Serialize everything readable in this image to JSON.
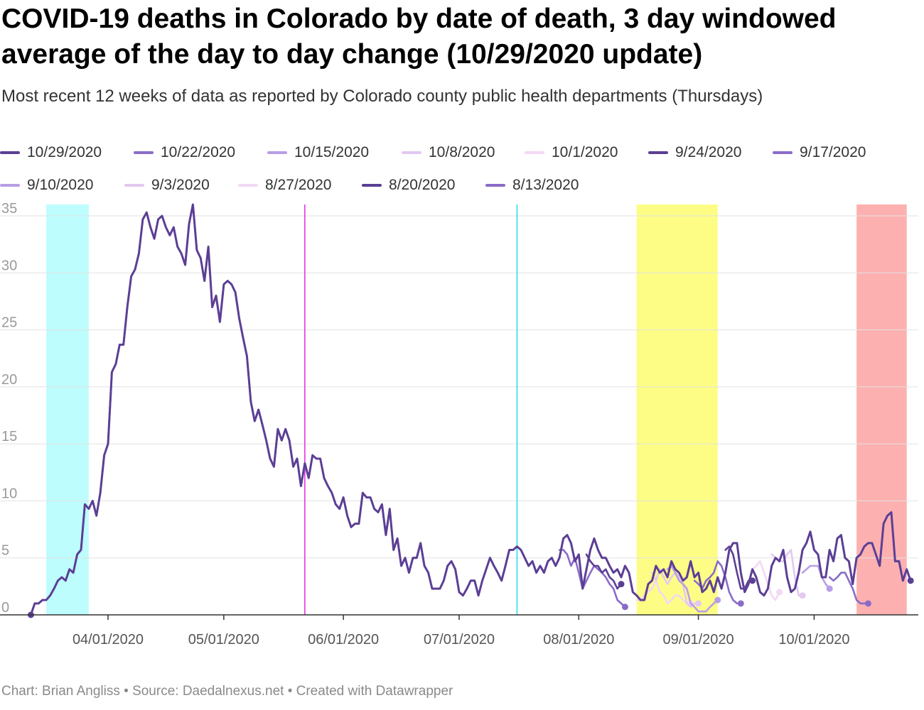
{
  "title": "COVID-19 deaths in Colorado by date of death, 3 day windowed average of the day to day change (10/29/2020 update)",
  "subtitle": "Most recent 12 weeks of data as reported by Colorado county public health departments (Thursdays)",
  "footer": "Chart: Brian Angliss • Source: Daedalnexus.net • Created with Datawrapper",
  "colors": {
    "dark": "#5b3f93",
    "mid": "#8a6cc8",
    "light": "#b79ee6",
    "pale": "#e3c8f0",
    "palest": "#f3d8f6",
    "cyan_band": "#bdfdfd",
    "yellow_band": "#fdfd85",
    "red_band": "#fdb0b0",
    "magenta_line": "#e535e5",
    "cyan_line": "#2ee0f0",
    "grid": "#dddddd"
  },
  "chart_data": {
    "type": "line",
    "title": "COVID-19 deaths in Colorado by date of death, 3 day windowed average of the day to day change (10/29/2020 update)",
    "ylim": [
      0,
      36
    ],
    "yticks": [
      0,
      5,
      10,
      15,
      20,
      25,
      30,
      35
    ],
    "xlim": [
      "2020-03-11",
      "2020-10-28"
    ],
    "xticks": [
      {
        "date": "2020-04-01",
        "label": "04/01/2020"
      },
      {
        "date": "2020-05-01",
        "label": "05/01/2020"
      },
      {
        "date": "2020-06-01",
        "label": "06/01/2020"
      },
      {
        "date": "2020-07-01",
        "label": "07/01/2020"
      },
      {
        "date": "2020-08-01",
        "label": "08/01/2020"
      },
      {
        "date": "2020-09-01",
        "label": "09/01/2020"
      },
      {
        "date": "2020-10-01",
        "label": "10/01/2020"
      }
    ],
    "bands": [
      {
        "from": "2020-03-16",
        "to": "2020-03-27",
        "color": "#bdfdfd"
      },
      {
        "from": "2020-08-16",
        "to": "2020-09-06",
        "color": "#fdfd85"
      },
      {
        "from": "2020-10-12",
        "to": "2020-10-25",
        "color": "#fdb0b0"
      }
    ],
    "vlines": [
      {
        "date": "2020-05-22",
        "color": "#e535e5"
      },
      {
        "date": "2020-07-16",
        "color": "#2ee0f0"
      }
    ],
    "main_series": {
      "dates": [
        "2020-03-12",
        "2020-03-13",
        "2020-03-14",
        "2020-03-15",
        "2020-03-16",
        "2020-03-17",
        "2020-03-18",
        "2020-03-19",
        "2020-03-20",
        "2020-03-21",
        "2020-03-22",
        "2020-03-23",
        "2020-03-24",
        "2020-03-25",
        "2020-03-26",
        "2020-03-27",
        "2020-03-28",
        "2020-03-29",
        "2020-03-30",
        "2020-03-31",
        "2020-04-01",
        "2020-04-02",
        "2020-04-03",
        "2020-04-04",
        "2020-04-05",
        "2020-04-06",
        "2020-04-07",
        "2020-04-08",
        "2020-04-09",
        "2020-04-10",
        "2020-04-11",
        "2020-04-12",
        "2020-04-13",
        "2020-04-14",
        "2020-04-15",
        "2020-04-16",
        "2020-04-17",
        "2020-04-18",
        "2020-04-19",
        "2020-04-20",
        "2020-04-21",
        "2020-04-22",
        "2020-04-23",
        "2020-04-24",
        "2020-04-25",
        "2020-04-26",
        "2020-04-27",
        "2020-04-28",
        "2020-04-29",
        "2020-04-30",
        "2020-05-01",
        "2020-05-02",
        "2020-05-03",
        "2020-05-04",
        "2020-05-05",
        "2020-05-06",
        "2020-05-07",
        "2020-05-08",
        "2020-05-09",
        "2020-05-10",
        "2020-05-11",
        "2020-05-12",
        "2020-05-13",
        "2020-05-14",
        "2020-05-15",
        "2020-05-16",
        "2020-05-17",
        "2020-05-18",
        "2020-05-19",
        "2020-05-20",
        "2020-05-21",
        "2020-05-22",
        "2020-05-23",
        "2020-05-24",
        "2020-05-25",
        "2020-05-26",
        "2020-05-27",
        "2020-05-28",
        "2020-05-29",
        "2020-05-30",
        "2020-05-31",
        "2020-06-01",
        "2020-06-02",
        "2020-06-03",
        "2020-06-04",
        "2020-06-05",
        "2020-06-06",
        "2020-06-07",
        "2020-06-08",
        "2020-06-09",
        "2020-06-10",
        "2020-06-11",
        "2020-06-12",
        "2020-06-13",
        "2020-06-14",
        "2020-06-15",
        "2020-06-16",
        "2020-06-17",
        "2020-06-18",
        "2020-06-19",
        "2020-06-20",
        "2020-06-21",
        "2020-06-22",
        "2020-06-23",
        "2020-06-24",
        "2020-06-25",
        "2020-06-26",
        "2020-06-27",
        "2020-06-28",
        "2020-06-29",
        "2020-06-30",
        "2020-07-01",
        "2020-07-02",
        "2020-07-03",
        "2020-07-04",
        "2020-07-05",
        "2020-07-06",
        "2020-07-07",
        "2020-07-08",
        "2020-07-09",
        "2020-07-10",
        "2020-07-11",
        "2020-07-12",
        "2020-07-13",
        "2020-07-14",
        "2020-07-15",
        "2020-07-16",
        "2020-07-17",
        "2020-07-18",
        "2020-07-19",
        "2020-07-20",
        "2020-07-21",
        "2020-07-22",
        "2020-07-23",
        "2020-07-24",
        "2020-07-25",
        "2020-07-26",
        "2020-07-27",
        "2020-07-28",
        "2020-07-29",
        "2020-07-30",
        "2020-07-31",
        "2020-08-01",
        "2020-08-02",
        "2020-08-03",
        "2020-08-04",
        "2020-08-05",
        "2020-08-06",
        "2020-08-07",
        "2020-08-08",
        "2020-08-09",
        "2020-08-10",
        "2020-08-11",
        "2020-08-12",
        "2020-08-13",
        "2020-08-14",
        "2020-08-15",
        "2020-08-16",
        "2020-08-17",
        "2020-08-18",
        "2020-08-19",
        "2020-08-20",
        "2020-08-21",
        "2020-08-22",
        "2020-08-23",
        "2020-08-24",
        "2020-08-25",
        "2020-08-26",
        "2020-08-27",
        "2020-08-28",
        "2020-08-29",
        "2020-08-30",
        "2020-08-31",
        "2020-09-01",
        "2020-09-02",
        "2020-09-03",
        "2020-09-04",
        "2020-09-05",
        "2020-09-06",
        "2020-09-07",
        "2020-09-08",
        "2020-09-09",
        "2020-09-10",
        "2020-09-11",
        "2020-09-12",
        "2020-09-13",
        "2020-09-14",
        "2020-09-15",
        "2020-09-16",
        "2020-09-17",
        "2020-09-18",
        "2020-09-19",
        "2020-09-20",
        "2020-09-21",
        "2020-09-22",
        "2020-09-23",
        "2020-09-24",
        "2020-09-25",
        "2020-09-26",
        "2020-09-27",
        "2020-09-28",
        "2020-09-29",
        "2020-09-30",
        "2020-10-01",
        "2020-10-02",
        "2020-10-03",
        "2020-10-04",
        "2020-10-05",
        "2020-10-06",
        "2020-10-07",
        "2020-10-08",
        "2020-10-09",
        "2020-10-10",
        "2020-10-11",
        "2020-10-12",
        "2020-10-13",
        "2020-10-14",
        "2020-10-15",
        "2020-10-16",
        "2020-10-17",
        "2020-10-18",
        "2020-10-19",
        "2020-10-20",
        "2020-10-21",
        "2020-10-22",
        "2020-10-23",
        "2020-10-24",
        "2020-10-25",
        "2020-10-26"
      ],
      "values": [
        0,
        1,
        1,
        1.3,
        1.3,
        1.7,
        2.3,
        3,
        3.3,
        3,
        4,
        3.7,
        5.3,
        5.7,
        9.7,
        9.3,
        10,
        8.7,
        10.7,
        14,
        15,
        21.3,
        22,
        23.7,
        23.7,
        27,
        29.7,
        30.3,
        31.7,
        34.7,
        35.3,
        34,
        33,
        34.7,
        35,
        34,
        33.3,
        34,
        32.3,
        31.7,
        30.7,
        34.3,
        36,
        32,
        31.3,
        29.3,
        32.3,
        27,
        28,
        25.7,
        29,
        29.3,
        29,
        28.3,
        26,
        24.3,
        22.7,
        18.7,
        17,
        18,
        16.7,
        15.3,
        13.7,
        13,
        16.3,
        15.3,
        16.3,
        15.3,
        13,
        13.7,
        11.3,
        13.3,
        12,
        14,
        13.7,
        13.7,
        12,
        11.3,
        10.7,
        9.7,
        9.3,
        10.3,
        8.7,
        7.7,
        8,
        8,
        10.7,
        10.3,
        10.3,
        9.3,
        9,
        9.7,
        7,
        9.3,
        5.7,
        6.7,
        4.3,
        5,
        3.7,
        5,
        5,
        6.3,
        4.3,
        3.7,
        2.3,
        2.3,
        2.3,
        3,
        4.3,
        4.7,
        4,
        2,
        1.7,
        2.3,
        3,
        3,
        1.7,
        3,
        4,
        5,
        4.3,
        3.7,
        3,
        4.3,
        5.7,
        5.7,
        6,
        5.7,
        5,
        4.3,
        4.7,
        3.7,
        4.3,
        3.7,
        4.7,
        5,
        4.3,
        5,
        6.7,
        7,
        6.3,
        4.7,
        5.3,
        2.3,
        4,
        5.7,
        6.7,
        5.7,
        5,
        5,
        4.3,
        3.7,
        4,
        3.3,
        4.3,
        3.7,
        2,
        1.7,
        1.3,
        1.3,
        2.7,
        3,
        4.3,
        3.7,
        4,
        3.3,
        4.7,
        4,
        3.7,
        3,
        3.3,
        4.7,
        3.3,
        3.7,
        2,
        2.3,
        3,
        2,
        3.3,
        2.3,
        3.7,
        5.7,
        6.3,
        6.3,
        3.7,
        2,
        2.7,
        4,
        3.3,
        2,
        1.7,
        2.3,
        4.3,
        5,
        4.7,
        5.7,
        3.3,
        2,
        2.3,
        3.7,
        5.7,
        6.3,
        7.3,
        5.7,
        5.3,
        3.3,
        3.3,
        5.7,
        4.7,
        6.7,
        7,
        5,
        4.7,
        2.7,
        5,
        5.3,
        6,
        6.3,
        6.3,
        5.3,
        4.3,
        8,
        8.7,
        9,
        4.7,
        4.7,
        3,
        4,
        3
      ]
    },
    "legend_series": [
      {
        "name": "10/29/2020",
        "color": "#5b3f93"
      },
      {
        "name": "10/22/2020",
        "color": "#8a6cc8"
      },
      {
        "name": "10/15/2020",
        "color": "#b79ee6"
      },
      {
        "name": "10/8/2020",
        "color": "#e3c8f0"
      },
      {
        "name": "10/1/2020",
        "color": "#f3d8f6"
      },
      {
        "name": "9/24/2020",
        "color": "#5b3f93"
      },
      {
        "name": "9/17/2020",
        "color": "#8a6cc8"
      },
      {
        "name": "9/10/2020",
        "color": "#b79ee6"
      },
      {
        "name": "9/3/2020",
        "color": "#e3c8f0"
      },
      {
        "name": "8/27/2020",
        "color": "#f3d8f6"
      },
      {
        "name": "8/20/2020",
        "color": "#5b3f93"
      },
      {
        "name": "8/13/2020",
        "color": "#8a6cc8"
      }
    ],
    "older_series": [
      {
        "name": "8/13/2020",
        "color": "#8a6cc8",
        "start": "2020-07-27",
        "values": [
          5.7,
          5.7,
          5.3,
          4.3,
          5,
          3.7,
          2.3,
          3,
          3.7,
          4.3,
          4,
          3.7,
          3.3,
          2.7,
          2.3,
          1.3,
          1,
          0.7
        ]
      },
      {
        "name": "8/20/2020",
        "color": "#5b3f93",
        "start": "2020-08-03",
        "values": [
          5.3,
          4.7,
          4.3,
          4.3,
          3.7,
          4,
          3.3,
          3,
          2.3,
          2.7
        ]
      },
      {
        "name": "8/27/2020",
        "color": "#f3d8f6",
        "start": "2020-08-16",
        "values": [
          1.3,
          1.3,
          1.7,
          2,
          2.3,
          3,
          2,
          1.7,
          1,
          1.3,
          1.7,
          1.7,
          1.3,
          1,
          1
        ]
      },
      {
        "name": "9/3/2020",
        "color": "#e3c8f0",
        "start": "2020-08-20",
        "values": [
          3.7,
          3,
          4,
          3.3,
          2.7,
          3.3,
          3.7,
          3.3,
          2.7,
          1,
          0.7,
          1,
          1
        ]
      },
      {
        "name": "9/10/2020",
        "color": "#b79ee6",
        "start": "2020-08-24",
        "values": [
          4,
          4.3,
          3.7,
          3,
          2.7,
          2.3,
          1,
          0.7,
          0.3,
          0.3,
          0.3,
          0.7,
          1,
          1.3
        ]
      },
      {
        "name": "9/17/2020",
        "color": "#8a6cc8",
        "start": "2020-08-31",
        "values": [
          3,
          2.7,
          2.3,
          3,
          3.3,
          3.7,
          4.7,
          4.3,
          3.3,
          2,
          1.3,
          1,
          1
        ]
      },
      {
        "name": "9/24/2020",
        "color": "#5b3f93",
        "start": "2020-09-08",
        "values": [
          5.7,
          6,
          5.3,
          3.7,
          2.3,
          2.3,
          3,
          3
        ]
      },
      {
        "name": "10/1/2020",
        "color": "#f3d8f6",
        "start": "2020-09-15",
        "values": [
          4,
          4.3,
          4.7,
          3.7,
          2.7,
          1.7,
          1.3,
          2
        ]
      },
      {
        "name": "10/8/2020",
        "color": "#e3c8f0",
        "start": "2020-09-20",
        "values": [
          5.3,
          5,
          4.7,
          4.7,
          5.3,
          5.7,
          3.3,
          1.7,
          1.7
        ]
      },
      {
        "name": "10/15/2020",
        "color": "#b79ee6",
        "start": "2020-09-28",
        "values": [
          3.7,
          4,
          4.3,
          4.3,
          4.3,
          3.3,
          2.7,
          2.3
        ]
      },
      {
        "name": "10/22/2020",
        "color": "#8a6cc8",
        "start": "2020-10-05",
        "values": [
          3.3,
          3,
          3.3,
          3.7,
          3.7,
          3,
          2.3,
          1.3,
          1,
          1,
          1
        ]
      }
    ]
  }
}
